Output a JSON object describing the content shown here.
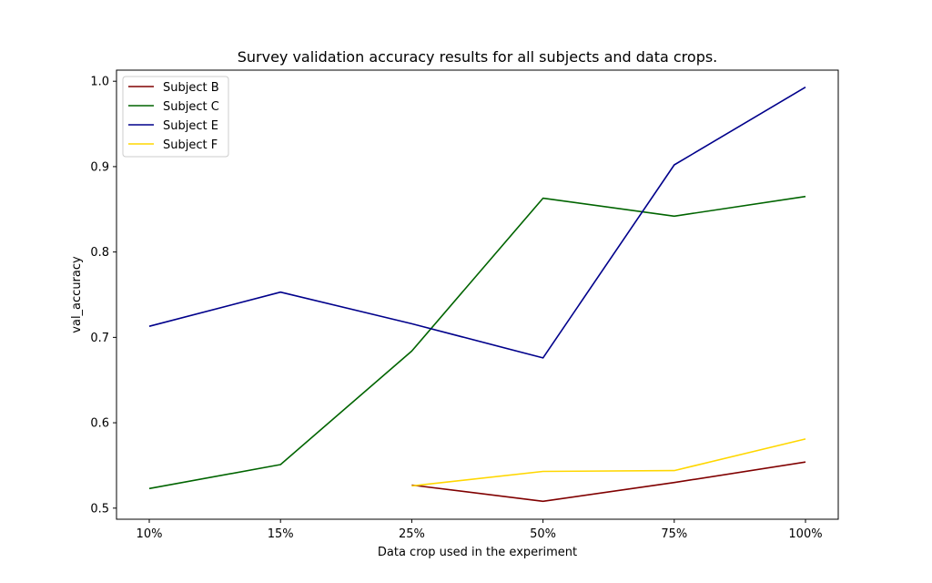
{
  "chart_data": {
    "type": "line",
    "title": "Survey validation accuracy results for all subjects and data crops.",
    "xlabel": "Data crop used in the experiment",
    "ylabel": "val_accuracy",
    "categories": [
      "10%",
      "15%",
      "25%",
      "50%",
      "75%",
      "100%"
    ],
    "yticks": [
      "0.5",
      "0.6",
      "0.7",
      "0.8",
      "0.9",
      "1.0"
    ],
    "ylim": [
      0.487,
      1.013
    ],
    "grid": false,
    "legend_position": "top-left",
    "series": [
      {
        "name": "Subject B",
        "color": "#800000",
        "values": [
          null,
          null,
          0.527,
          0.508,
          0.53,
          0.554
        ]
      },
      {
        "name": "Subject C",
        "color": "#006400",
        "values": [
          0.523,
          0.551,
          0.684,
          0.863,
          0.842,
          0.865
        ]
      },
      {
        "name": "Subject E",
        "color": "#00008b",
        "values": [
          0.713,
          0.753,
          0.716,
          0.676,
          0.902,
          0.993
        ]
      },
      {
        "name": "Subject F",
        "color": "#ffd700",
        "values": [
          null,
          null,
          0.526,
          0.543,
          0.544,
          0.581
        ]
      }
    ]
  }
}
